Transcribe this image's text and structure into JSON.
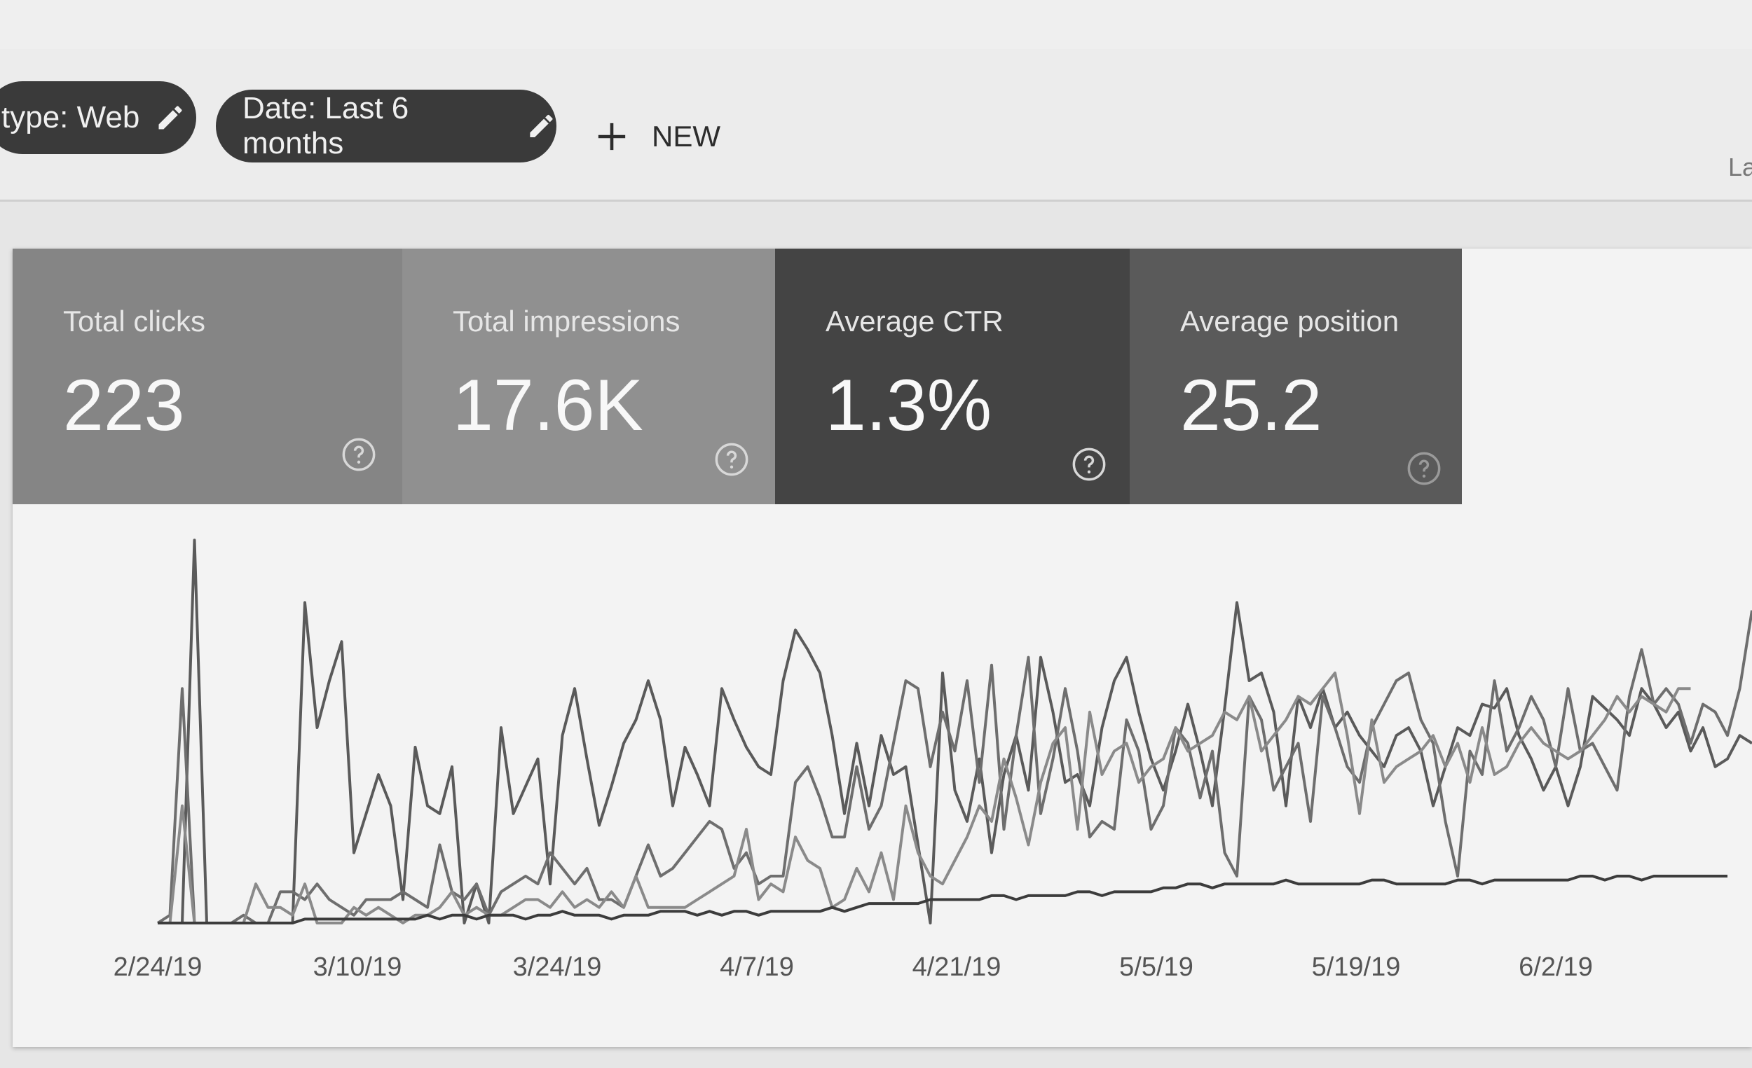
{
  "filters": {
    "type_chip": "type: Web",
    "date_chip": "Date: Last 6 months",
    "new_label": "NEW",
    "edge_text": "La"
  },
  "metrics": [
    {
      "label": "Total clicks",
      "value": "223"
    },
    {
      "label": "Total impressions",
      "value": "17.6K"
    },
    {
      "label": "Average CTR",
      "value": "1.3%"
    },
    {
      "label": "Average position",
      "value": "25.2"
    }
  ],
  "colors": {
    "clicks_tile": "#858585",
    "impressions_tile": "#909090",
    "ctr_tile": "#444444",
    "position_tile": "#5a5a5a"
  },
  "chart_data": {
    "type": "line",
    "x_ticks": [
      "2/24/19",
      "3/10/19",
      "3/24/19",
      "4/7/19",
      "4/21/19",
      "5/5/19",
      "5/19/19",
      "6/2/19"
    ],
    "x_range": [
      0,
      128
    ],
    "y_range": [
      0,
      100
    ],
    "grid": false,
    "series": [
      {
        "color": "#5a5a5a",
        "width": 4,
        "values": [
          0,
          0,
          0,
          98,
          0,
          0,
          0,
          0,
          0,
          0,
          0,
          0,
          82,
          50,
          62,
          72,
          18,
          28,
          38,
          30,
          6,
          45,
          30,
          28,
          40,
          0,
          10,
          0,
          50,
          28,
          35,
          42,
          10,
          48,
          60,
          42,
          25,
          35,
          46,
          52,
          62,
          52,
          30,
          45,
          38,
          30,
          60,
          52,
          45,
          40,
          38,
          62,
          75,
          70,
          64,
          48,
          28,
          46,
          30,
          48,
          38,
          40,
          20,
          0,
          64,
          34,
          26,
          42,
          18,
          38,
          48,
          34,
          68,
          54,
          36,
          38,
          30,
          50,
          62,
          68,
          54,
          42,
          34,
          44,
          56,
          44,
          30,
          55,
          82,
          62,
          64,
          54,
          30,
          58,
          50,
          60,
          50,
          54,
          48,
          44,
          40,
          48,
          50,
          44,
          30,
          40,
          50,
          48,
          56,
          55,
          60,
          48,
          42,
          34,
          40,
          30,
          40,
          58,
          55,
          52,
          48,
          60,
          56,
          50,
          54,
          44,
          50,
          40,
          42,
          48,
          46
        ]
      },
      {
        "color": "#6e6e6e",
        "width": 4,
        "values": [
          0,
          2,
          60,
          0,
          0,
          0,
          0,
          2,
          0,
          0,
          8,
          8,
          6,
          10,
          6,
          4,
          2,
          6,
          6,
          6,
          8,
          6,
          4,
          20,
          8,
          6,
          10,
          2,
          8,
          10,
          12,
          10,
          18,
          14,
          10,
          14,
          6,
          6,
          4,
          12,
          20,
          12,
          14,
          18,
          22,
          26,
          24,
          14,
          18,
          10,
          12,
          12,
          36,
          40,
          32,
          22,
          22,
          40,
          24,
          30,
          46,
          62,
          60,
          40,
          54,
          44,
          62,
          36,
          66,
          24,
          48,
          68,
          28,
          42,
          60,
          44,
          22,
          26,
          24,
          52,
          44,
          24,
          30,
          50,
          46,
          32,
          44,
          18,
          12,
          58,
          52,
          34,
          40,
          46,
          26,
          58,
          50,
          40,
          36,
          50,
          56,
          62,
          64,
          52,
          46,
          26,
          12,
          44,
          38,
          62,
          44,
          50,
          58,
          52,
          40,
          60,
          44,
          46,
          40,
          34,
          58,
          70,
          56,
          60,
          56,
          46,
          56,
          54,
          48,
          60,
          80
        ]
      },
      {
        "color": "#8a8a8a",
        "width": 4,
        "values": [
          0,
          0,
          30,
          0,
          0,
          0,
          0,
          0,
          10,
          4,
          4,
          2,
          10,
          0,
          0,
          0,
          4,
          2,
          4,
          2,
          0,
          2,
          2,
          4,
          8,
          2,
          4,
          2,
          2,
          4,
          6,
          6,
          4,
          8,
          4,
          6,
          4,
          8,
          4,
          12,
          4,
          4,
          4,
          4,
          6,
          8,
          10,
          12,
          24,
          6,
          10,
          8,
          22,
          16,
          14,
          4,
          6,
          14,
          8,
          18,
          6,
          30,
          18,
          12,
          10,
          16,
          22,
          30,
          26,
          42,
          32,
          20,
          36,
          46,
          50,
          24,
          54,
          38,
          44,
          46,
          36,
          40,
          42,
          50,
          44,
          46,
          48,
          54,
          52,
          58,
          44,
          48,
          52,
          58,
          56,
          60,
          64,
          48,
          28,
          52,
          36,
          40,
          42,
          44,
          48,
          40,
          46,
          36,
          50,
          38,
          40,
          46,
          50,
          46,
          44,
          42,
          44,
          48,
          52,
          58,
          54,
          58,
          56,
          54,
          60,
          60
        ]
      },
      {
        "color": "#3c3c3c",
        "width": 4,
        "values": [
          0,
          0,
          0,
          0,
          0,
          0,
          0,
          0,
          0,
          0,
          0,
          0,
          1,
          1,
          1,
          1,
          1,
          1,
          1,
          1,
          1,
          1,
          2,
          1,
          2,
          2,
          1,
          2,
          2,
          2,
          1,
          2,
          2,
          3,
          2,
          2,
          2,
          1,
          2,
          2,
          2,
          3,
          3,
          3,
          2,
          3,
          2,
          3,
          3,
          2,
          3,
          3,
          3,
          3,
          3,
          4,
          3,
          4,
          5,
          5,
          5,
          5,
          5,
          6,
          6,
          6,
          6,
          6,
          7,
          7,
          6,
          7,
          7,
          7,
          7,
          8,
          8,
          7,
          8,
          8,
          8,
          8,
          9,
          9,
          10,
          10,
          9,
          10,
          10,
          10,
          10,
          10,
          11,
          10,
          10,
          10,
          10,
          10,
          10,
          11,
          11,
          10,
          10,
          10,
          10,
          10,
          11,
          11,
          10,
          11,
          11,
          11,
          11,
          11,
          11,
          11,
          12,
          12,
          11,
          12,
          12,
          11,
          12,
          12,
          12,
          12,
          12,
          12,
          12
        ]
      }
    ]
  }
}
